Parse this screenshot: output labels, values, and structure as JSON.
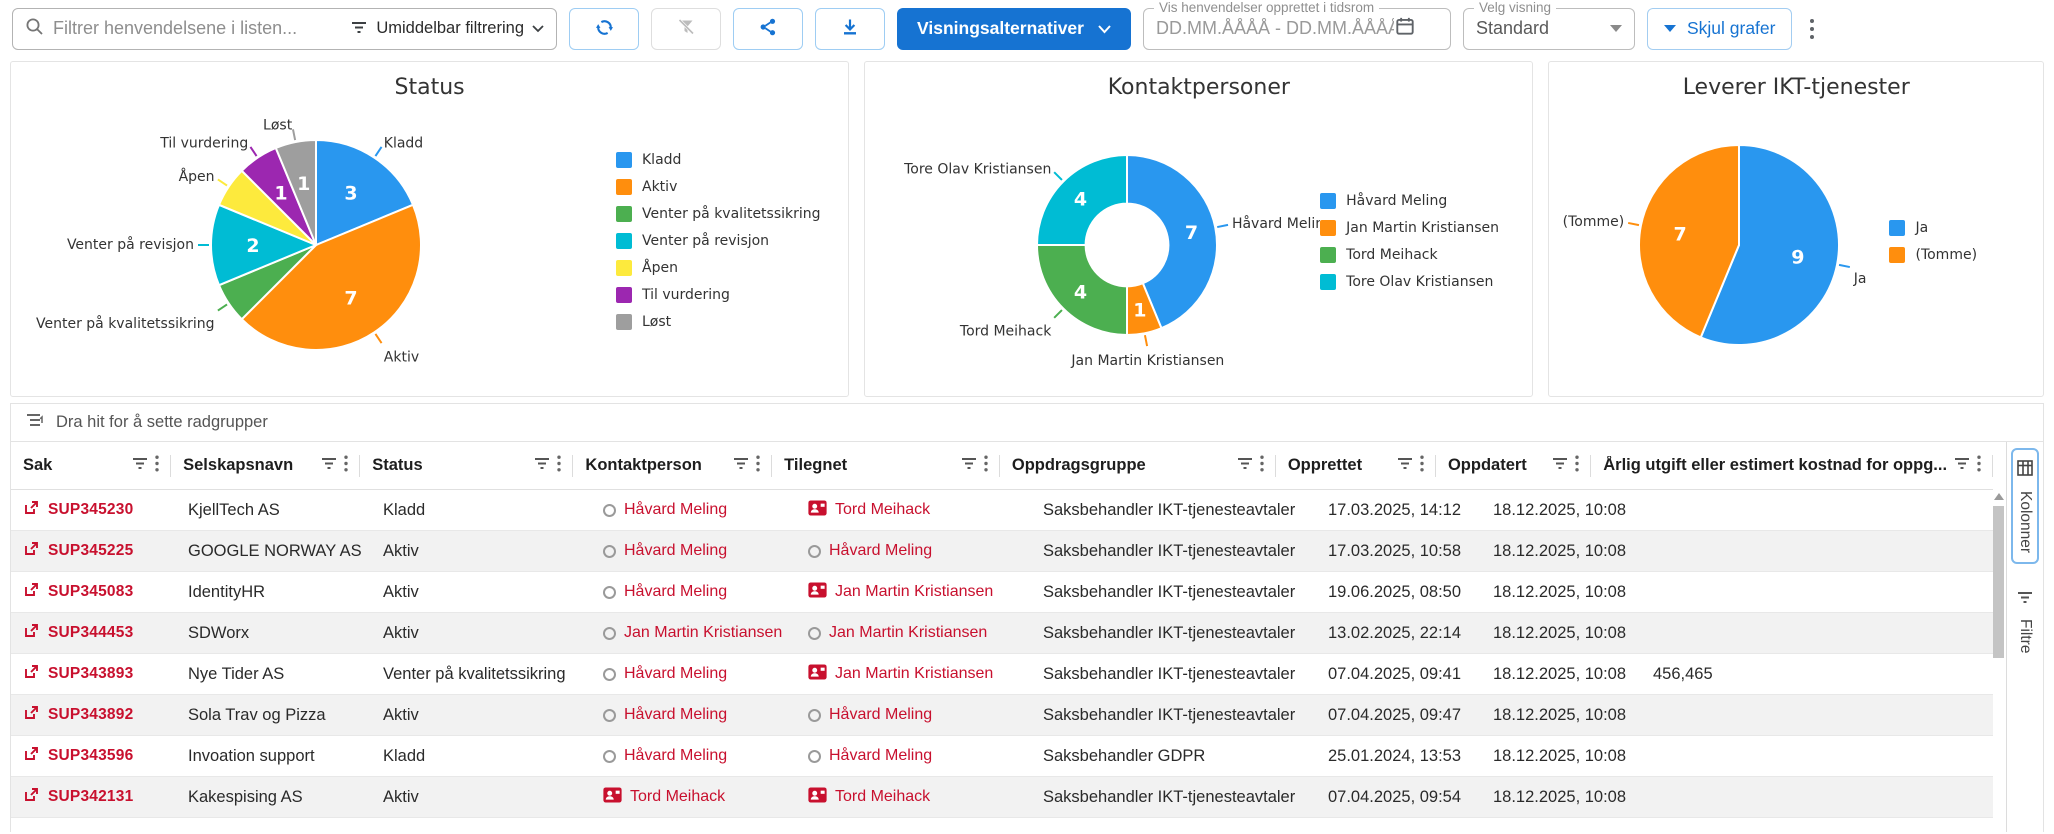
{
  "toolbar": {
    "search_placeholder": "Filtrer henvendelsene i listen...",
    "instant_filter": "Umiddelbar filtrering",
    "view_options_button": "Visningsalternativer",
    "date_range_label": "Vis henvendelser opprettet i tidsrom",
    "date_range_placeholder": "DD.MM.ÅÅÅÅ - DD.MM.ÅÅÅÅ",
    "view_select_label": "Velg visning",
    "view_select_value": "Standard",
    "hide_charts_button": "Skjul grafer"
  },
  "colors": {
    "accent_red": "#c8102e",
    "primary_blue": "#1673d2"
  },
  "chart_data": [
    {
      "type": "pie",
      "title": "Status",
      "donut": false,
      "legend_position": "right",
      "slices": [
        {
          "label": "Kladd",
          "value": 3,
          "color": "#2997ef",
          "show_value": true
        },
        {
          "label": "Aktiv",
          "value": 7,
          "color": "#ff8e0d",
          "show_value": true
        },
        {
          "label": "Venter på kvalitetssikring",
          "value": 1,
          "color": "#4caf50",
          "show_value": false
        },
        {
          "label": "Venter på revisjon",
          "value": 2,
          "color": "#00bcd4",
          "show_value": true
        },
        {
          "label": "Åpen",
          "value": 1,
          "color": "#fdea3d",
          "show_value": false
        },
        {
          "label": "Til vurdering",
          "value": 1,
          "color": "#9c27b0",
          "show_value": true
        },
        {
          "label": "Løst",
          "value": 1,
          "color": "#9e9e9e",
          "show_value": true
        }
      ]
    },
    {
      "type": "pie",
      "title": "Kontaktpersoner",
      "donut": true,
      "legend_position": "right",
      "slices": [
        {
          "label": "Håvard Meling",
          "value": 7,
          "color": "#2997ef",
          "show_value": true
        },
        {
          "label": "Jan Martin Kristiansen",
          "value": 1,
          "color": "#ff8e0d",
          "show_value": true
        },
        {
          "label": "Tord Meihack",
          "value": 4,
          "color": "#4caf50",
          "show_value": true
        },
        {
          "label": "Tore Olav Kristiansen",
          "value": 4,
          "color": "#00bcd4",
          "show_value": true
        }
      ]
    },
    {
      "type": "pie",
      "title": "Leverer IKT-tjenester",
      "donut": false,
      "legend_position": "right",
      "slices": [
        {
          "label": "Ja",
          "value": 9,
          "color": "#2997ef",
          "show_value": true
        },
        {
          "label": "(Tomme)",
          "value": 7,
          "color": "#ff8e0d",
          "show_value": true
        }
      ]
    }
  ],
  "table": {
    "group_hint": "Dra hit for å sette radgrupper",
    "columns": [
      "Sak",
      "Selskapsnavn",
      "Status",
      "Kontaktperson",
      "Tilegnet",
      "Oppdragsgruppe",
      "Opprettet",
      "Oppdatert",
      "Årlig utgift eller estimert kostnad for oppg..."
    ],
    "rows": [
      {
        "sak": "SUP345230",
        "selskapsnavn": "KjellTech AS",
        "status": "Kladd",
        "kontaktperson": {
          "name": "Håvard Meling",
          "badge": false
        },
        "tilegnet": {
          "name": "Tord Meihack",
          "badge": true
        },
        "oppdragsgruppe": "Saksbehandler IKT-tjenesteavtaler",
        "opprettet": "17.03.2025, 14:12",
        "oppdatert": "18.12.2025, 10:08",
        "arlig_utgift": ""
      },
      {
        "sak": "SUP345225",
        "selskapsnavn": "GOOGLE NORWAY AS",
        "status": "Aktiv",
        "kontaktperson": {
          "name": "Håvard Meling",
          "badge": false
        },
        "tilegnet": {
          "name": "Håvard Meling",
          "badge": false
        },
        "oppdragsgruppe": "Saksbehandler IKT-tjenesteavtaler",
        "opprettet": "17.03.2025, 10:58",
        "oppdatert": "18.12.2025, 10:08",
        "arlig_utgift": ""
      },
      {
        "sak": "SUP345083",
        "selskapsnavn": "IdentityHR",
        "status": "Aktiv",
        "kontaktperson": {
          "name": "Håvard Meling",
          "badge": false
        },
        "tilegnet": {
          "name": "Jan Martin Kristiansen",
          "badge": true
        },
        "oppdragsgruppe": "Saksbehandler IKT-tjenesteavtaler",
        "opprettet": "19.06.2025, 08:50",
        "oppdatert": "18.12.2025, 10:08",
        "arlig_utgift": ""
      },
      {
        "sak": "SUP344453",
        "selskapsnavn": "SDWorx",
        "status": "Aktiv",
        "kontaktperson": {
          "name": "Jan Martin Kristiansen",
          "badge": false
        },
        "tilegnet": {
          "name": "Jan Martin Kristiansen",
          "badge": false
        },
        "oppdragsgruppe": "Saksbehandler IKT-tjenesteavtaler",
        "opprettet": "13.02.2025, 22:14",
        "oppdatert": "18.12.2025, 10:08",
        "arlig_utgift": ""
      },
      {
        "sak": "SUP343893",
        "selskapsnavn": "Nye Tider AS",
        "status": "Venter på kvalitetssikring",
        "kontaktperson": {
          "name": "Håvard Meling",
          "badge": false
        },
        "tilegnet": {
          "name": "Jan Martin Kristiansen",
          "badge": true
        },
        "oppdragsgruppe": "Saksbehandler IKT-tjenesteavtaler",
        "opprettet": "07.04.2025, 09:41",
        "oppdatert": "18.12.2025, 10:08",
        "arlig_utgift": "456,465"
      },
      {
        "sak": "SUP343892",
        "selskapsnavn": "Sola Trav og Pizza",
        "status": "Aktiv",
        "kontaktperson": {
          "name": "Håvard Meling",
          "badge": false
        },
        "tilegnet": {
          "name": "Håvard Meling",
          "badge": false
        },
        "oppdragsgruppe": "Saksbehandler IKT-tjenesteavtaler",
        "opprettet": "07.04.2025, 09:47",
        "oppdatert": "18.12.2025, 10:08",
        "arlig_utgift": ""
      },
      {
        "sak": "SUP343596",
        "selskapsnavn": "Invoation support",
        "status": "Kladd",
        "kontaktperson": {
          "name": "Håvard Meling",
          "badge": false
        },
        "tilegnet": {
          "name": "Håvard Meling",
          "badge": false
        },
        "oppdragsgruppe": "Saksbehandler GDPR",
        "opprettet": "25.01.2024, 13:53",
        "oppdatert": "18.12.2025, 10:08",
        "arlig_utgift": ""
      },
      {
        "sak": "SUP342131",
        "selskapsnavn": "Kakespising AS",
        "status": "Aktiv",
        "kontaktperson": {
          "name": "Tord Meihack",
          "badge": true
        },
        "tilegnet": {
          "name": "Tord Meihack",
          "badge": true
        },
        "oppdragsgruppe": "Saksbehandler IKT-tjenesteavtaler",
        "opprettet": "07.04.2025, 09:54",
        "oppdatert": "18.12.2025, 10:08",
        "arlig_utgift": ""
      }
    ]
  },
  "side_panel": {
    "tabs": [
      "Kolonner",
      "Filtre"
    ]
  }
}
